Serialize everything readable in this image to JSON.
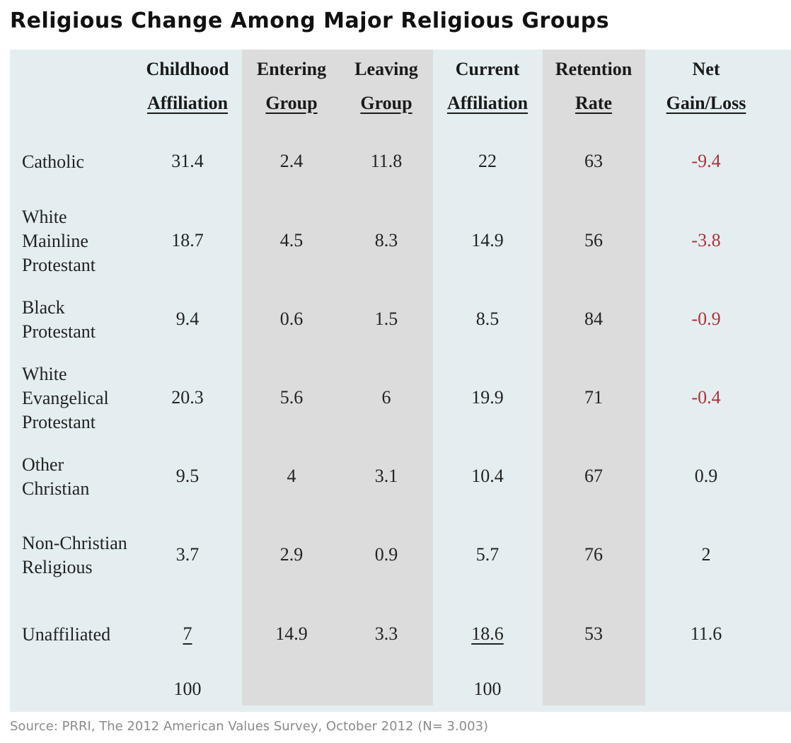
{
  "title": "Religious Change Among Major Religious Groups",
  "source": "Source: PRRI, The 2012 American Values Survey, October 2012 (N= 3.003)",
  "colors": {
    "panel": "#e4eef0",
    "shaded_band": "#dcdcdc",
    "negative": "#b0303a"
  },
  "chart_data": {
    "type": "table",
    "columns": [
      {
        "line1": "Childhood",
        "line2": "Affiliation"
      },
      {
        "line1": "Entering",
        "line2": "Group"
      },
      {
        "line1": "Leaving",
        "line2": "Group"
      },
      {
        "line1": "Current",
        "line2": "Affiliation"
      },
      {
        "line1": "Retention",
        "line2": "Rate"
      },
      {
        "line1": "Net",
        "line2": "Gain/Loss"
      }
    ],
    "rows": [
      {
        "label": "Catholic",
        "values": [
          "31.4",
          "2.4",
          "11.8",
          "22",
          "63",
          "-9.4"
        ]
      },
      {
        "label": "White Mainline Protestant",
        "values": [
          "18.7",
          "4.5",
          "8.3",
          "14.9",
          "56",
          "-3.8"
        ]
      },
      {
        "label": "Black Protestant",
        "values": [
          "9.4",
          "0.6",
          "1.5",
          "8.5",
          "84",
          "-0.9"
        ]
      },
      {
        "label": "White Evangelical Protestant",
        "values": [
          "20.3",
          "5.6",
          "6",
          "19.9",
          "71",
          "-0.4"
        ]
      },
      {
        "label": "Other Christian",
        "values": [
          "9.5",
          "4",
          "3.1",
          "10.4",
          "67",
          "0.9"
        ]
      },
      {
        "label": "Non-Christian Religious",
        "values": [
          "3.7",
          "2.9",
          "0.9",
          "5.7",
          "76",
          "2"
        ]
      },
      {
        "label": "Unaffiliated",
        "values": [
          "7",
          "14.9",
          "3.3",
          "18.6",
          "53",
          "11.6"
        ]
      }
    ],
    "totals": [
      "100",
      "",
      "",
      "100",
      "",
      ""
    ]
  }
}
